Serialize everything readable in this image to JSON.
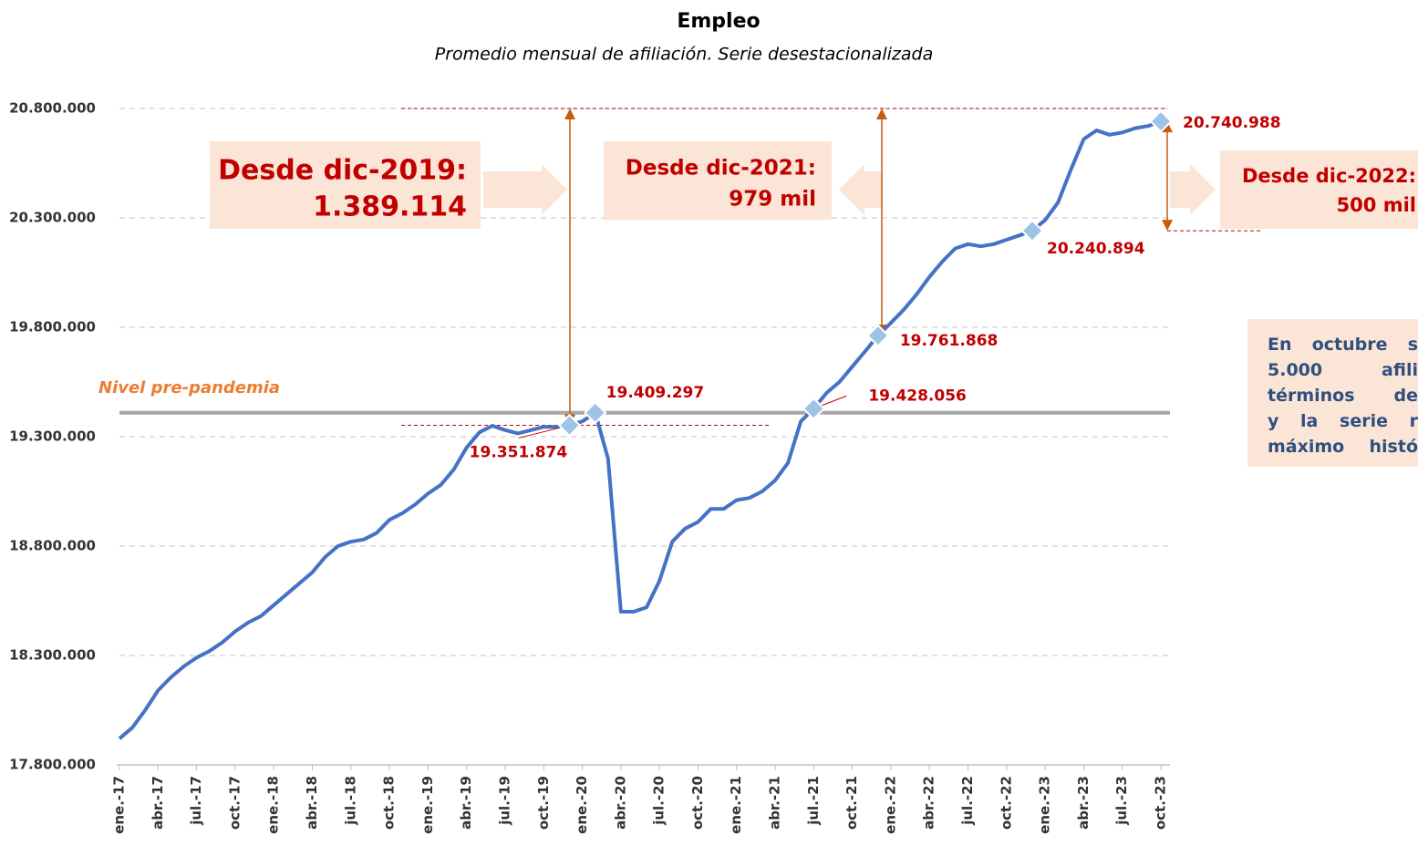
{
  "chart_data": {
    "type": "line",
    "title": "Empleo",
    "subtitle": "Promedio mensual de afiliación. Serie desestacionalizada",
    "categories": [
      "ene.-17",
      null,
      null,
      "abr.-17",
      null,
      null,
      "jul.-17",
      null,
      null,
      "oct.-17",
      null,
      null,
      "ene.-18",
      null,
      null,
      "abr.-18",
      null,
      null,
      "jul.-18",
      null,
      null,
      "oct.-18",
      null,
      null,
      "ene.-19",
      null,
      null,
      "abr.-19",
      null,
      null,
      "jul.-19",
      null,
      null,
      "oct.-19",
      null,
      null,
      "ene.-20",
      null,
      null,
      "abr.-20",
      null,
      null,
      "jul.-20",
      null,
      null,
      "oct.-20",
      null,
      null,
      "ene.-21",
      null,
      null,
      "abr.-21",
      null,
      null,
      "jul.-21",
      null,
      null,
      "oct.-21",
      null,
      null,
      "ene.-22",
      null,
      null,
      "abr.-22",
      null,
      null,
      "jul.-22",
      null,
      null,
      "oct.-22",
      null,
      null,
      "ene.-23",
      null,
      null,
      "abr.-23",
      null,
      null,
      "jul.-23",
      null,
      null,
      "oct.-23"
    ],
    "series": [
      {
        "name": "Afiliación",
        "color": "#4472c4",
        "values": [
          17920000,
          17970000,
          18050000,
          18140000,
          18200000,
          18250000,
          18290000,
          18320000,
          18360000,
          18410000,
          18450000,
          18480000,
          18530000,
          18580000,
          18630000,
          18680000,
          18750000,
          18800000,
          18820000,
          18830000,
          18860000,
          18920000,
          18950000,
          18990000,
          19040000,
          19080000,
          19150000,
          19250000,
          19320000,
          19350000,
          19330000,
          19315000,
          19330000,
          19345000,
          19345000,
          19351874,
          19370000,
          19409297,
          19200000,
          18500000,
          18500000,
          18520000,
          18640000,
          18820000,
          18880000,
          18910000,
          18970000,
          18970000,
          19010000,
          19020000,
          19050000,
          19100000,
          19180000,
          19370000,
          19428056,
          19500000,
          19550000,
          19620000,
          19690000,
          19761868,
          19820000,
          19880000,
          19950000,
          20030000,
          20100000,
          20160000,
          20180000,
          20170000,
          20180000,
          20200000,
          20220000,
          20240894,
          20290000,
          20370000,
          20520000,
          20660000,
          20700000,
          20680000,
          20690000,
          20710000,
          20720000,
          20740988
        ],
        "value_labels": [
          null,
          null,
          null,
          null,
          null,
          null,
          null,
          null,
          null,
          null,
          null,
          null,
          null,
          null,
          null,
          null,
          null,
          null,
          null,
          null,
          null,
          null,
          null,
          null,
          null,
          null,
          null,
          null,
          null,
          null,
          null,
          null,
          null,
          null,
          null,
          "19.351.874",
          null,
          "19.409.297",
          null,
          null,
          null,
          null,
          null,
          null,
          null,
          null,
          null,
          null,
          null,
          null,
          null,
          null,
          null,
          null,
          "19.428.056",
          null,
          null,
          null,
          null,
          "19.761.868",
          null,
          null,
          null,
          null,
          null,
          null,
          null,
          null,
          null,
          null,
          null,
          "20.240.894",
          null,
          null,
          null,
          null,
          null,
          null,
          null,
          null,
          null,
          "20.740.988"
        ]
      }
    ],
    "ylim": [
      17800000,
      20800000
    ],
    "yticks": [
      {
        "value": 17800000,
        "label": "17.800.000"
      },
      {
        "value": 18300000,
        "label": "18.300.000"
      },
      {
        "value": 18800000,
        "label": "18.800.000"
      },
      {
        "value": 19300000,
        "label": "19.300.000"
      },
      {
        "value": 19800000,
        "label": "19.800.000"
      },
      {
        "value": 20300000,
        "label": "20.300.000"
      },
      {
        "value": 20800000,
        "label": "20.800.000"
      }
    ],
    "grid": true,
    "reference_line": {
      "value": 19409297,
      "label": "Nivel pre-pandemia",
      "color": "#a6a6a6"
    },
    "annotations": [
      {
        "lines": [
          "Desde dic-2019:",
          "1.389.114"
        ]
      },
      {
        "lines": [
          "Desde dic-2021:",
          "979 mil"
        ]
      },
      {
        "lines": [
          "Desde dic-2022:",
          "500 mil"
        ]
      }
    ],
    "note_lines": [
      "En octubre s",
      "5.000 afili",
      "términos de",
      "y la serie r",
      "máximo histó"
    ]
  }
}
